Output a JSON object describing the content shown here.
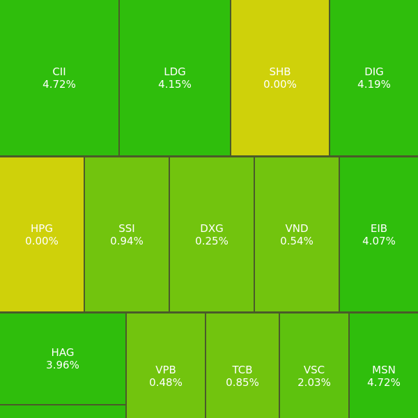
{
  "colors": {
    "strong_up": "#2fbe0c",
    "mid_up": "#5ec20e",
    "light_up": "#72c40e",
    "neutral": "#cfd10a",
    "border": "#4a5a2a",
    "text": "#ffffff"
  },
  "tiles": [
    {
      "symbol": "CII",
      "change": "4.72%"
    },
    {
      "symbol": "LDG",
      "change": "4.15%"
    },
    {
      "symbol": "SHB",
      "change": "0.00%"
    },
    {
      "symbol": "DIG",
      "change": "4.19%"
    },
    {
      "symbol": "HPG",
      "change": "0.00%"
    },
    {
      "symbol": "SSI",
      "change": "0.94%"
    },
    {
      "symbol": "DXG",
      "change": "0.25%"
    },
    {
      "symbol": "VND",
      "change": "0.54%"
    },
    {
      "symbol": "EIB",
      "change": "4.07%"
    },
    {
      "symbol": "HAG",
      "change": "3.96%"
    },
    {
      "symbol": "VPB",
      "change": "0.48%"
    },
    {
      "symbol": "TCB",
      "change": "0.85%"
    },
    {
      "symbol": "VSC",
      "change": "2.03%"
    },
    {
      "symbol": "MSN",
      "change": "4.72%"
    }
  ]
}
